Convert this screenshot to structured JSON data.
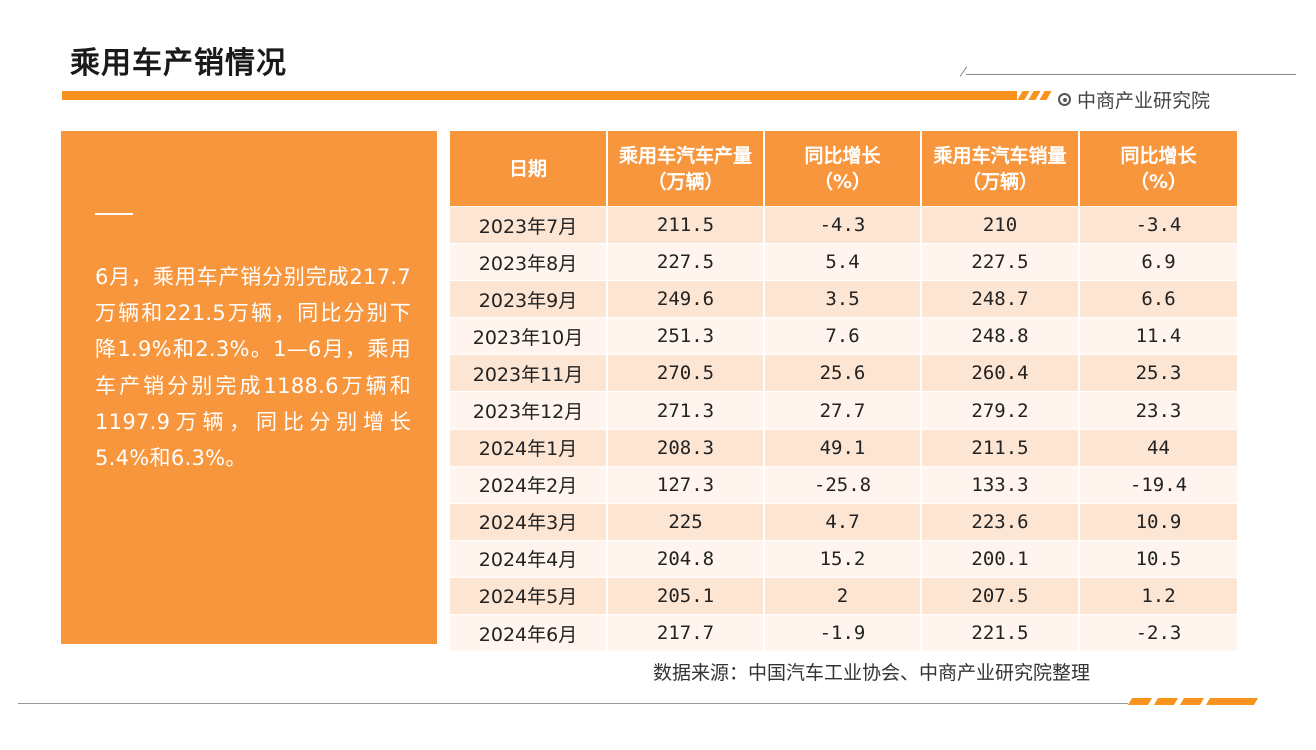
{
  "title": "乘用车产销情况",
  "brand": "中商产业研究院",
  "summary": "6月，乘用车产销分别完成217.7万辆和221.5万辆，同比分别下降1.9%和2.3%。1—6月，乘用车产销分别完成1188.6万辆和1197.9万辆，同比分别增长5.4%和6.3%。",
  "table": {
    "headers": [
      {
        "line1": "日期",
        "line2": ""
      },
      {
        "line1": "乘用车汽车产量",
        "line2": "（万辆）"
      },
      {
        "line1": "同比增长",
        "line2": "（%）"
      },
      {
        "line1": "乘用车汽车销量",
        "line2": "（万辆）"
      },
      {
        "line1": "同比增长",
        "line2": "（%）"
      }
    ],
    "rows": [
      [
        "2023年7月",
        "211.5",
        "-4.3",
        "210",
        "-3.4"
      ],
      [
        "2023年8月",
        "227.5",
        "5.4",
        "227.5",
        "6.9"
      ],
      [
        "2023年9月",
        "249.6",
        "3.5",
        "248.7",
        "6.6"
      ],
      [
        "2023年10月",
        "251.3",
        "7.6",
        "248.8",
        "11.4"
      ],
      [
        "2023年11月",
        "270.5",
        "25.6",
        "260.4",
        "25.3"
      ],
      [
        "2023年12月",
        "271.3",
        "27.7",
        "279.2",
        "23.3"
      ],
      [
        "2024年1月",
        "208.3",
        "49.1",
        "211.5",
        "44"
      ],
      [
        "2024年2月",
        "127.3",
        "-25.8",
        "133.3",
        "-19.4"
      ],
      [
        "2024年3月",
        "225",
        "4.7",
        "223.6",
        "10.9"
      ],
      [
        "2024年4月",
        "204.8",
        "15.2",
        "200.1",
        "10.5"
      ],
      [
        "2024年5月",
        "205.1",
        "2",
        "207.5",
        "1.2"
      ],
      [
        "2024年6月",
        "217.7",
        "-1.9",
        "221.5",
        "-2.3"
      ]
    ]
  },
  "source": "数据来源：中国汽车工业协会、中商产业研究院整理",
  "colors": {
    "accent": "#f7963d",
    "row_odd": "#fde5d3",
    "row_even": "#fff5ee"
  }
}
